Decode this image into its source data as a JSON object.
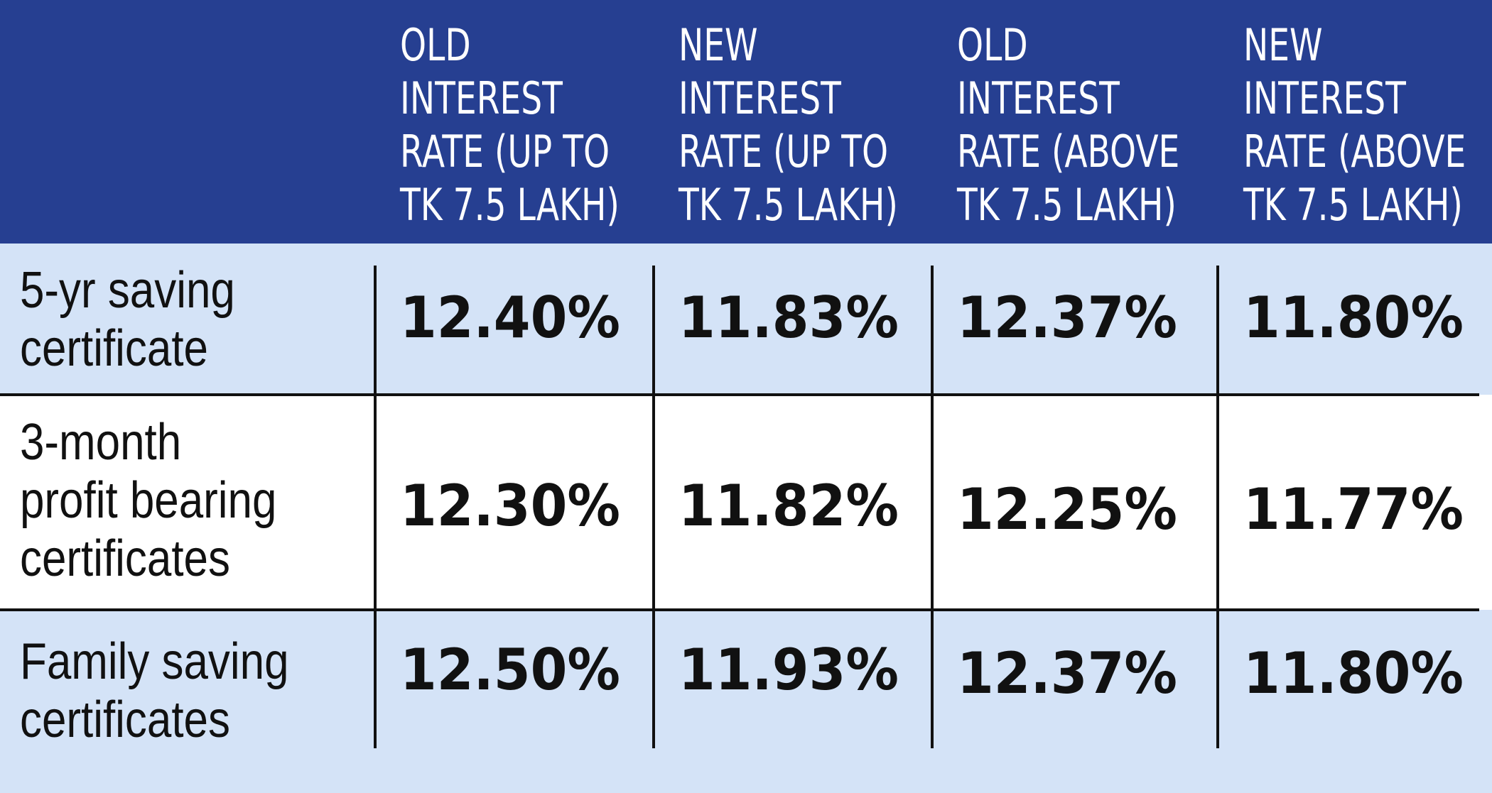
{
  "table": {
    "columns": [
      {
        "lines": [
          "OLD",
          "INTEREST",
          "RATE (UP TO",
          "TK 7.5 LAKH)"
        ]
      },
      {
        "lines": [
          "NEW",
          "INTEREST",
          "RATE (UP TO",
          "TK 7.5 LAKH)"
        ]
      },
      {
        "lines": [
          "OLD",
          "INTEREST",
          "RATE (ABOVE",
          "TK 7.5 LAKH)"
        ]
      },
      {
        "lines": [
          "NEW",
          "INTEREST",
          "RATE (ABOVE",
          "TK 7.5 LAKH)"
        ]
      }
    ],
    "rows": [
      {
        "label_lines": [
          "5-yr saving",
          "certificate"
        ],
        "values": [
          "12.40%",
          "11.83%",
          "12.37%",
          "11.80%"
        ]
      },
      {
        "label_lines": [
          "3-month",
          "profit bearing",
          "certificates"
        ],
        "values": [
          "12.30%",
          "11.82%",
          "12.25%",
          "11.77%"
        ]
      },
      {
        "label_lines": [
          "Family saving",
          "certificates"
        ],
        "values": [
          "12.50%",
          "11.93%",
          "12.37%",
          "11.80%"
        ]
      }
    ]
  },
  "colors": {
    "header_background": "#263f91",
    "header_text": "#ffffff",
    "row_shaded": "#d4e3f7",
    "row_plain": "#ffffff",
    "rule": "#111111"
  }
}
